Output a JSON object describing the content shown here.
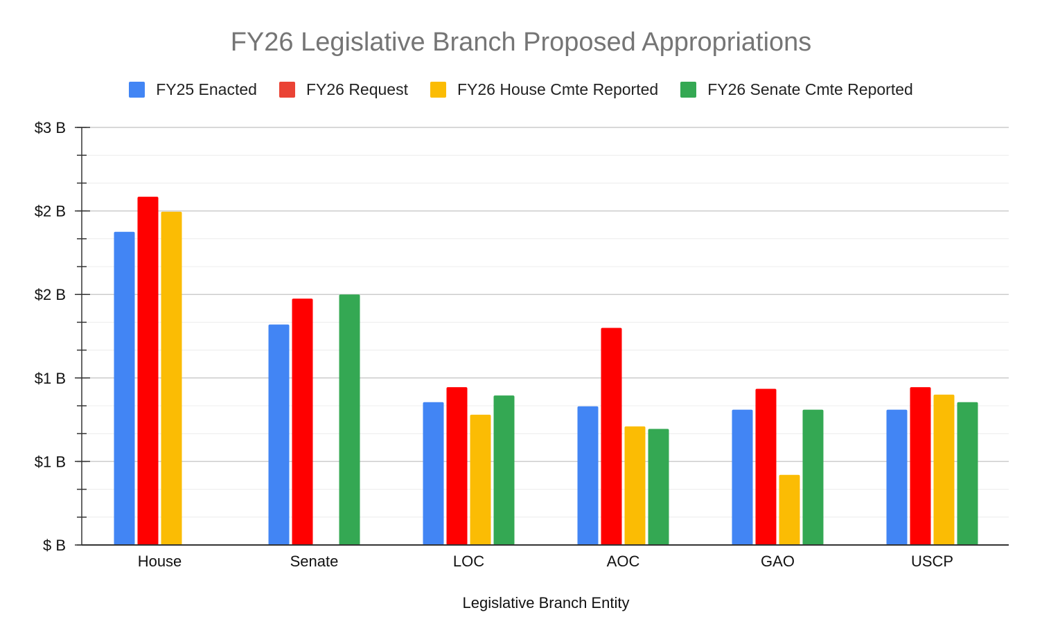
{
  "chart_data": {
    "type": "bar",
    "title": "FY26 Legislative Branch Proposed Appropriations",
    "xlabel": "Legislative Branch Entity",
    "ylabel": "",
    "categories": [
      "House",
      "Senate",
      "LOC",
      "AOC",
      "GAO",
      "USCP"
    ],
    "ylim": [
      0,
      2.5
    ],
    "yticks": [
      {
        "value": 0,
        "label": "$ B"
      },
      {
        "value": 0.5,
        "label": "$1 B"
      },
      {
        "value": 1.0,
        "label": "$1 B"
      },
      {
        "value": 1.5,
        "label": "$2 B"
      },
      {
        "value": 2.0,
        "label": "$2 B"
      },
      {
        "value": 2.5,
        "label": "$3 B"
      }
    ],
    "minor_step": 0.1666667,
    "grid": true,
    "legend_position": "top",
    "series": [
      {
        "name": "FY25 Enacted",
        "color": "#4285F4",
        "values": [
          1.875,
          1.32,
          0.855,
          0.83,
          0.81,
          0.81
        ]
      },
      {
        "name": "FY26 Request",
        "color": "#FF0000",
        "values": [
          2.085,
          1.475,
          0.945,
          1.3,
          0.935,
          0.945
        ]
      },
      {
        "name": "FY26 House Cmte Reported",
        "color": "#FBBC04",
        "values": [
          1.995,
          null,
          0.78,
          0.71,
          0.42,
          0.9
        ]
      },
      {
        "name": "FY26 Senate Cmte Reported",
        "color": "#34A853",
        "values": [
          null,
          1.5,
          0.895,
          0.695,
          0.81,
          0.855
        ]
      }
    ]
  }
}
